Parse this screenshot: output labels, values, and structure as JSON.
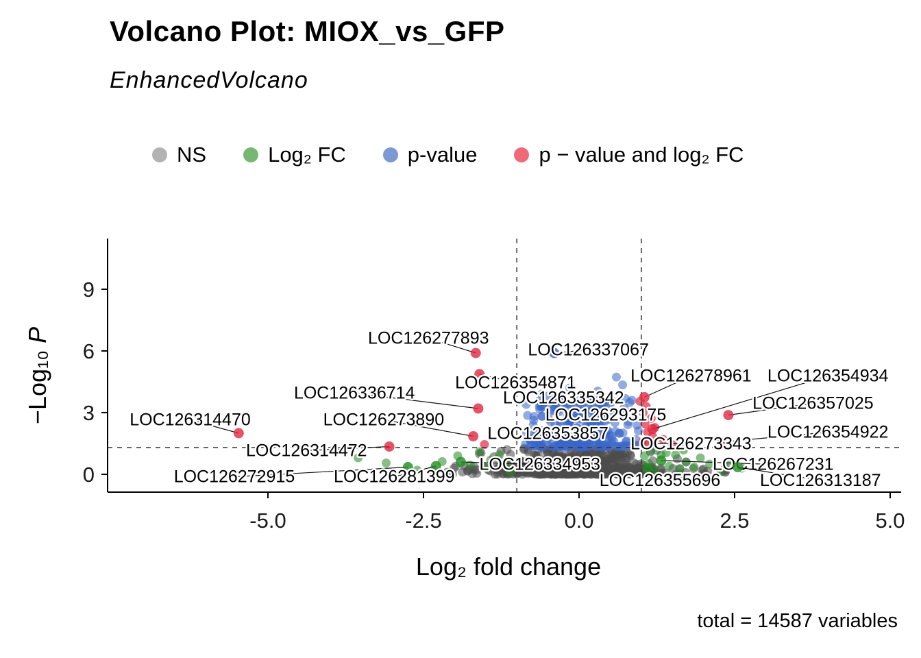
{
  "title": "Volcano Plot: MIOX_vs_GFP",
  "subtitle": "EnhancedVolcano",
  "caption": "total = 14587 variables",
  "legend": {
    "items": [
      {
        "label": "NS",
        "color": "#b3b3b3"
      },
      {
        "label": "Log₂ FC",
        "color": "#74b874"
      },
      {
        "label": "p-value",
        "color": "#7c99d6"
      },
      {
        "label": "p − value and log₂ FC",
        "color": "#ef6a76"
      }
    ]
  },
  "axes": {
    "x_label": "Log₂ fold change",
    "y_label_prefix": "−Log₁₀ ",
    "y_label_italic": "P",
    "x_ticks": [
      "-5.0",
      "-2.5",
      "0.0",
      "2.5",
      "5.0"
    ],
    "x_tick_values": [
      -5,
      -2.5,
      0,
      2.5,
      5
    ],
    "y_ticks": [
      "0",
      "3",
      "6",
      "9"
    ],
    "y_tick_values": [
      0,
      3,
      6,
      9
    ]
  },
  "chart_data": {
    "type": "scatter",
    "title": "Volcano Plot: MIOX_vs_GFP",
    "subtitle": "EnhancedVolcano",
    "xlabel": "Log2 fold change",
    "ylabel": "-Log10 P",
    "xlim": [
      -7.6,
      5.2
    ],
    "ylim": [
      -0.9,
      11.5
    ],
    "grid": false,
    "legend_position": "top",
    "cutoffs": {
      "x": [
        -1,
        1
      ],
      "y": 1.3
    },
    "colors": {
      "ns": "#4d4d4d",
      "fc": "#228b22",
      "p": "#3a66c9",
      "both": "#e02840"
    },
    "point_alpha": 0.55,
    "labeled_points": [
      {
        "label": "LOC126277893",
        "x": -1.66,
        "y": 5.9,
        "c": "both",
        "lx": -2.42,
        "ly": 6.62
      },
      {
        "label": "LOC126354871",
        "x": -1.6,
        "y": 4.87,
        "c": "both",
        "lx": -1.02,
        "ly": 4.45
      },
      {
        "label": "LOC126336714",
        "x": -1.62,
        "y": 3.2,
        "c": "both",
        "lx": -3.61,
        "ly": 3.95
      },
      {
        "label": "LOC126314470",
        "x": -5.47,
        "y": 2.0,
        "c": "both",
        "lx": -6.25,
        "ly": 2.65
      },
      {
        "label": "LOC126273890",
        "x": -1.7,
        "y": 1.85,
        "c": "both",
        "lx": -3.14,
        "ly": 2.65
      },
      {
        "label": "LOC126314472",
        "x": -3.05,
        "y": 1.35,
        "c": "both",
        "lx": -4.38,
        "ly": 1.15
      },
      {
        "label": "LOC126337067",
        "x": -0.4,
        "y": 5.9,
        "c": "p",
        "lx": 0.15,
        "ly": 6.05
      },
      {
        "label": "LOC126335342",
        "x": -0.6,
        "y": 3.35,
        "c": "p",
        "lx": -0.25,
        "ly": 3.72
      },
      {
        "label": "LOC126293175",
        "x": 0.2,
        "y": 2.6,
        "c": "p",
        "lx": 0.43,
        "ly": 2.88
      },
      {
        "label": "LOC126353857",
        "x": -0.78,
        "y": 1.7,
        "c": "p",
        "lx": -0.5,
        "ly": 1.98
      },
      {
        "label": "LOC126334953",
        "x": -1.9,
        "y": 0.6,
        "c": "fc",
        "lx": -0.63,
        "ly": 0.48
      },
      {
        "label": "LOC126278961",
        "x": 1.05,
        "y": 3.75,
        "c": "both",
        "lx": 1.8,
        "ly": 4.78
      },
      {
        "label": "LOC126354934",
        "x": 1.18,
        "y": 2.2,
        "c": "both",
        "lx": 4.0,
        "ly": 4.78
      },
      {
        "label": "LOC126357025",
        "x": 2.4,
        "y": 2.88,
        "c": "both",
        "lx": 3.76,
        "ly": 3.45
      },
      {
        "label": "LOC126354922",
        "x": 2.3,
        "y": 1.57,
        "c": "both",
        "lx": 4.0,
        "ly": 2.05
      },
      {
        "label": "LOC126273343",
        "x": 1.12,
        "y": 1.5,
        "c": "both",
        "lx": 1.8,
        "ly": 1.48
      },
      {
        "label": "LOC126272915",
        "x": -2.75,
        "y": 0.35,
        "c": "fc",
        "lx": -5.54,
        "ly": -0.12
      },
      {
        "label": "LOC126281399",
        "x": -2.3,
        "y": 0.4,
        "c": "fc",
        "lx": -2.97,
        "ly": -0.12
      },
      {
        "label": "LOC126355696",
        "x": 1.1,
        "y": 0.3,
        "c": "fc",
        "lx": 1.3,
        "ly": -0.3
      },
      {
        "label": "LOC126267231",
        "x": 1.32,
        "y": 0.67,
        "c": "fc",
        "lx": 3.12,
        "ly": 0.48
      },
      {
        "label": "LOC126313187",
        "x": 2.55,
        "y": 0.35,
        "c": "fc",
        "lx": 3.88,
        "ly": -0.3
      }
    ],
    "extra_points": {
      "both": [
        [
          0.98,
          3.55
        ],
        [
          1.08,
          3.3
        ],
        [
          1.03,
          3.0
        ],
        [
          1.16,
          2.72
        ],
        [
          1.06,
          2.45
        ],
        [
          1.22,
          2.28
        ],
        [
          1.1,
          2.05
        ],
        [
          1.18,
          1.85
        ],
        [
          1.35,
          1.7
        ],
        [
          1.02,
          1.58
        ],
        [
          1.5,
          1.45
        ],
        [
          -1.52,
          1.45
        ]
      ],
      "p": [
        [
          0.6,
          4.73
        ],
        [
          0.7,
          4.35
        ],
        [
          -0.15,
          4.2
        ],
        [
          0.3,
          4.05
        ],
        [
          -0.6,
          3.9
        ],
        [
          0.85,
          3.6
        ],
        [
          -0.85,
          3.4
        ]
      ],
      "fc": [
        [
          -3.55,
          0.8
        ],
        [
          -3.1,
          0.55
        ],
        [
          -2.6,
          0.2
        ],
        [
          -2.2,
          0.62
        ],
        [
          -1.95,
          0.9
        ],
        [
          -1.75,
          0.45
        ],
        [
          -1.6,
          1.1
        ],
        [
          -1.48,
          0.3
        ],
        [
          -1.42,
          0.7
        ],
        [
          -1.28,
          0.95
        ],
        [
          -1.18,
          0.5
        ],
        [
          -1.1,
          0.12
        ],
        [
          1.05,
          0.9
        ],
        [
          1.12,
          0.52
        ],
        [
          1.22,
          0.18
        ],
        [
          1.32,
          0.95
        ],
        [
          1.45,
          0.4
        ],
        [
          1.55,
          0.95
        ],
        [
          1.62,
          0.25
        ],
        [
          1.72,
          0.6
        ],
        [
          1.85,
          0.35
        ],
        [
          1.95,
          0.8
        ],
        [
          2.1,
          0.5
        ],
        [
          2.28,
          0.15
        ],
        [
          2.42,
          0.65
        ],
        [
          1.15,
          1.15
        ],
        [
          1.4,
          1.05
        ],
        [
          1.68,
          1.18
        ],
        [
          2.62,
          0.3
        ]
      ]
    },
    "cloud": {
      "seed": 20240601,
      "ns_core": 520,
      "ns_wide": 140,
      "p_count": 250
    }
  }
}
